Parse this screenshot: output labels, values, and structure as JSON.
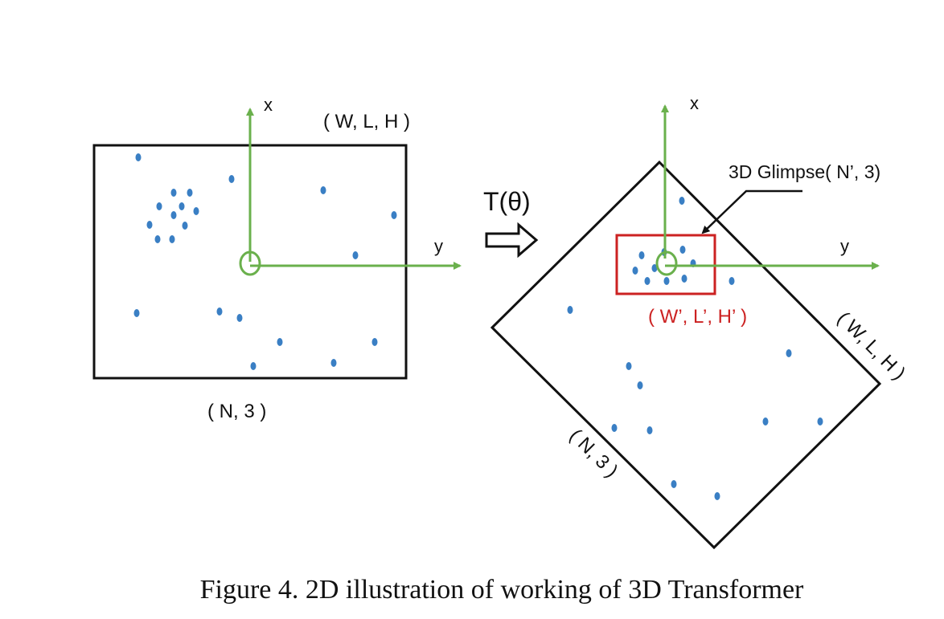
{
  "colors": {
    "axis": "#6ab04c",
    "point": "#3a7fc4",
    "frame": "#111111",
    "glimpse": "#cc2222"
  },
  "left_panel": {
    "axis_x_label": "x",
    "axis_y_label": "y",
    "volume_label": "( W, L, H )",
    "points_label": "( N, 3 )"
  },
  "transform": {
    "label": "T(θ)",
    "arrow_icon": "right-arrow-icon"
  },
  "right_panel": {
    "axis_x_label": "x",
    "axis_y_label": "y",
    "glimpse_label": "3D Glimpse( N’, 3)",
    "glimpse_size_label": "( W’, L’, H’ )",
    "volume_label": "( W, L, H )",
    "points_label": "( N, 3 )"
  },
  "caption": "Figure 4. 2D illustration of working of 3D Transformer"
}
